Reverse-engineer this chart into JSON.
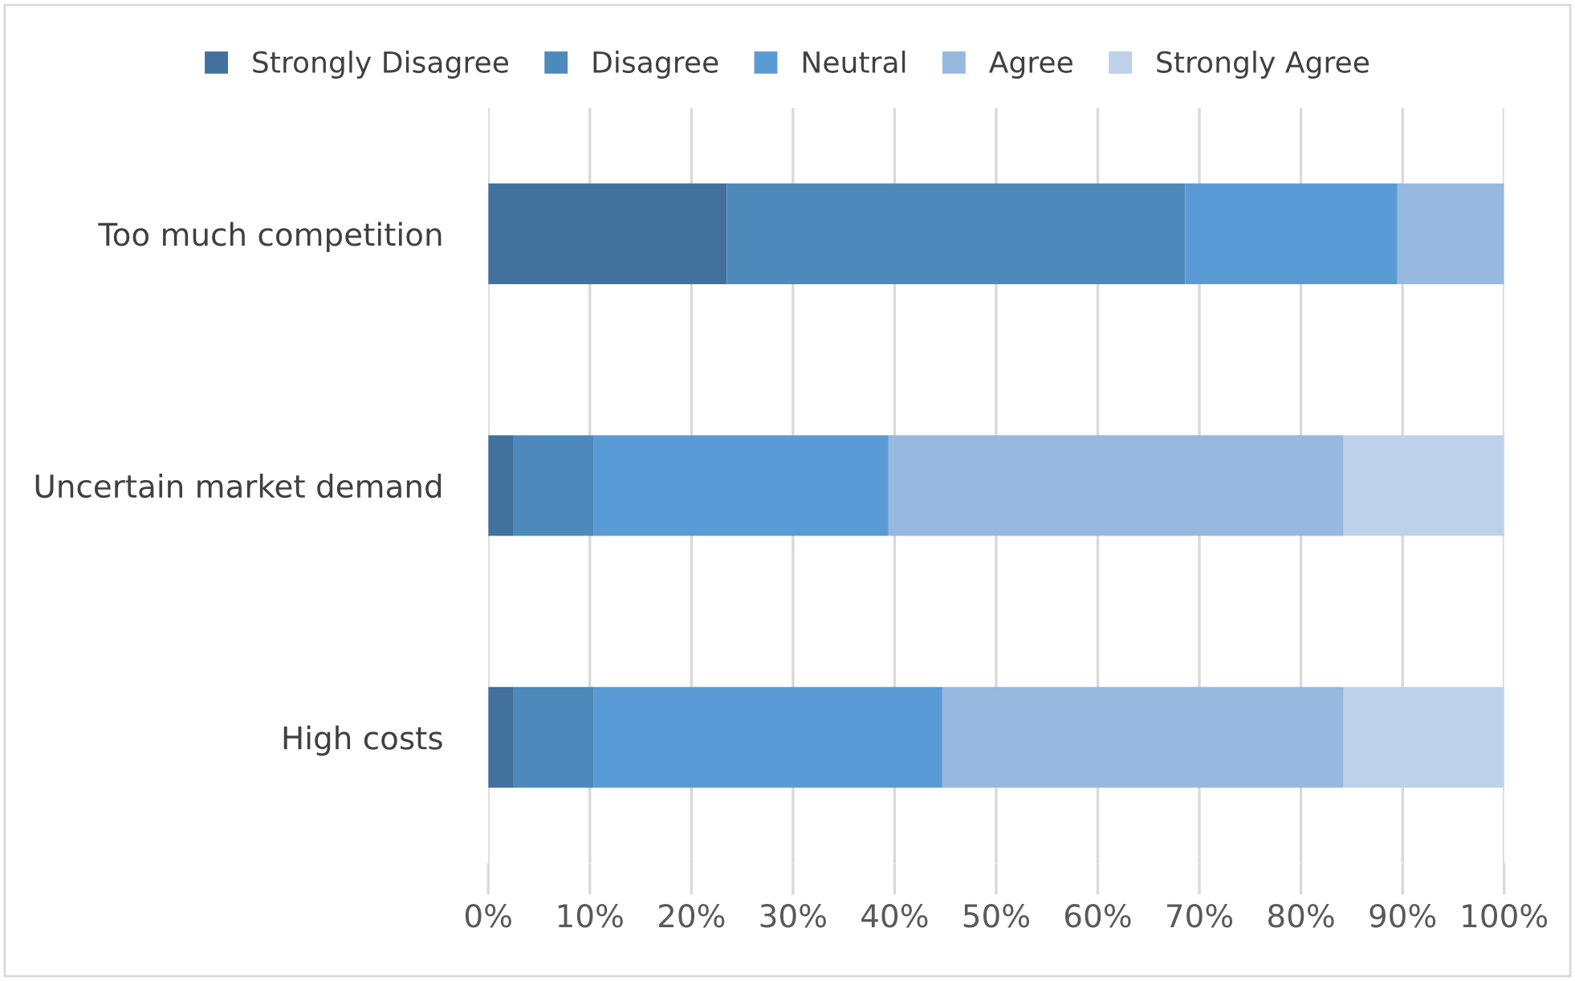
{
  "chart_data": {
    "type": "bar",
    "orientation": "horizontal",
    "stacked": true,
    "categories": [
      "Too much competition",
      "Uncertain market demand",
      "High costs"
    ],
    "series": [
      {
        "name": "Strongly Disagree",
        "color": "#41719c",
        "values": [
          23.5,
          2.5,
          2.5
        ]
      },
      {
        "name": "Disagree",
        "color": "#4e89bc",
        "values": [
          45.1,
          7.9,
          7.9
        ]
      },
      {
        "name": "Neutral",
        "color": "#5b9bd5",
        "values": [
          20.9,
          29.0,
          34.3
        ]
      },
      {
        "name": "Agree",
        "color": "#97b8df",
        "values": [
          10.5,
          44.8,
          39.5
        ]
      },
      {
        "name": "Strongly Agree",
        "color": "#bdd1eb",
        "values": [
          0,
          15.8,
          15.8
        ]
      }
    ],
    "xlim": [
      0,
      100
    ],
    "xticks": [
      {
        "value": 0,
        "label": "0%"
      },
      {
        "value": 10,
        "label": "10%"
      },
      {
        "value": 20,
        "label": "20%"
      },
      {
        "value": 30,
        "label": "30%"
      },
      {
        "value": 40,
        "label": "40%"
      },
      {
        "value": 50,
        "label": "50%"
      },
      {
        "value": 60,
        "label": "60%"
      },
      {
        "value": 70,
        "label": "70%"
      },
      {
        "value": 80,
        "label": "80%"
      },
      {
        "value": 90,
        "label": "90%"
      },
      {
        "value": 100,
        "label": "100%"
      }
    ],
    "grid": "x",
    "legend": "top"
  }
}
